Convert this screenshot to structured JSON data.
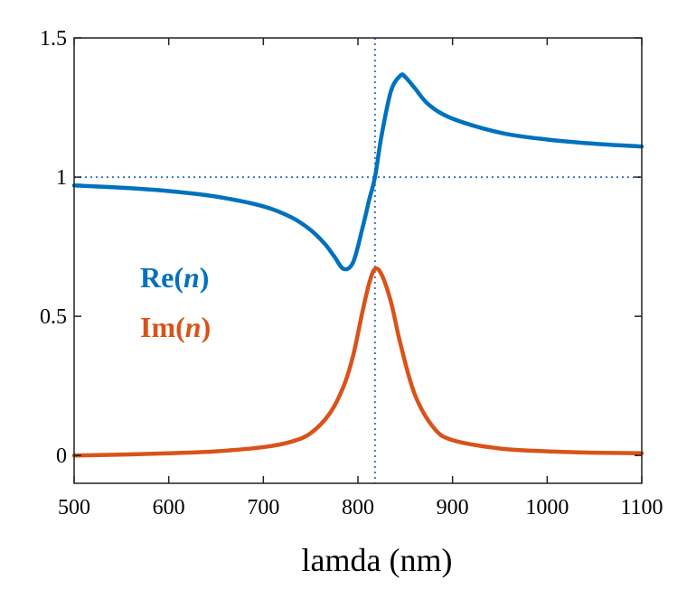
{
  "chart_data": {
    "type": "line",
    "title": "",
    "xlabel": "lamda (nm)",
    "ylabel": "",
    "xlim": [
      500,
      1100
    ],
    "ylim": [
      -0.1,
      1.5
    ],
    "xticks": [
      500,
      600,
      700,
      800,
      900,
      1000,
      1100
    ],
    "yticks": [
      0,
      0.5,
      1,
      1.5
    ],
    "ytick_labels": [
      "0",
      "0.5",
      "1",
      "1.5"
    ],
    "grid": false,
    "reference_lines": {
      "vertical_x": 818,
      "horizontal_y": 1
    },
    "legend": {
      "placement": "center-left",
      "entries": [
        {
          "prefix": "Re(",
          "var": "n",
          "suffix": ")",
          "color": "#0072BD"
        },
        {
          "prefix": "Im(",
          "var": "n",
          "suffix": ")",
          "color": "#D95319"
        }
      ]
    },
    "series": [
      {
        "color": "#0072BD",
        "x": [
          500,
          550,
          600,
          650,
          700,
          730,
          750,
          765,
          775,
          785,
          795,
          805,
          812,
          818,
          825,
          835,
          845,
          850,
          860,
          875,
          900,
          950,
          1000,
          1050,
          1100
        ],
        "y": [
          0.97,
          0.962,
          0.95,
          0.93,
          0.895,
          0.855,
          0.81,
          0.76,
          0.715,
          0.67,
          0.695,
          0.82,
          0.92,
          1.0,
          1.15,
          1.31,
          1.365,
          1.36,
          1.32,
          1.26,
          1.21,
          1.16,
          1.135,
          1.12,
          1.11
        ]
      },
      {
        "color": "#D95319",
        "x": [
          500,
          550,
          600,
          650,
          700,
          730,
          750,
          770,
          785,
          795,
          805,
          812,
          818,
          825,
          835,
          845,
          860,
          880,
          900,
          950,
          1000,
          1050,
          1100
        ],
        "y": [
          0.0,
          0.003,
          0.008,
          0.015,
          0.03,
          0.05,
          0.08,
          0.15,
          0.25,
          0.36,
          0.52,
          0.62,
          0.67,
          0.65,
          0.55,
          0.4,
          0.22,
          0.1,
          0.055,
          0.025,
          0.015,
          0.01,
          0.008
        ]
      }
    ]
  }
}
